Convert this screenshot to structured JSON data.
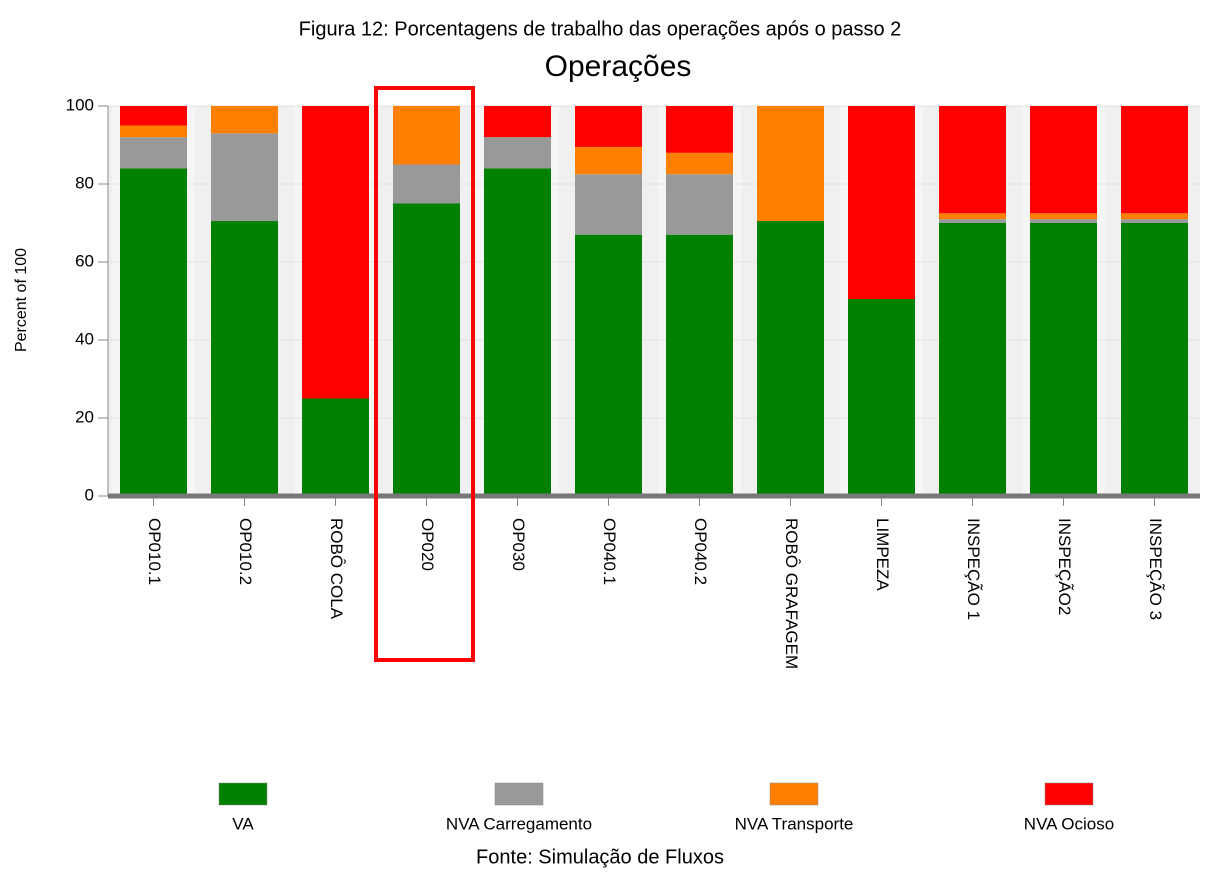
{
  "chart_data": {
    "type": "stacked_bar",
    "caption": "Figura 12: Porcentagens de trabalho das operações após o passo 2",
    "title": "Operações",
    "y_label": "Percent of 100",
    "source": "Fonte: Simulação de Fluxos",
    "categories": [
      "OP010.1",
      "OP010.2",
      "ROBÔ COLA",
      "OP020",
      "OP030",
      "OP040.1",
      "OP040.2",
      "ROBÔ GRAFAGEM",
      "LIMPEZA",
      "INSPEÇÃO 1",
      "INSPEÇÃO2",
      "INSPEÇÃO 3"
    ],
    "series": [
      {
        "name": "VA",
        "color": "#008000",
        "values": [
          84,
          70.5,
          25,
          75,
          84,
          67,
          67,
          70.5,
          50.5,
          70,
          70,
          70
        ]
      },
      {
        "name": "NVA Carregamento",
        "color": "#999999",
        "values": [
          8,
          22.5,
          0,
          10,
          8,
          15.5,
          15.5,
          0,
          0,
          1,
          1,
          1
        ]
      },
      {
        "name": "NVA Transporte",
        "color": "#ff8000",
        "values": [
          3,
          7,
          0,
          15,
          0,
          7,
          5.5,
          29.5,
          0,
          1.5,
          1.5,
          1.5
        ]
      },
      {
        "name": "NVA Ocioso",
        "color": "#ff0000",
        "values": [
          5,
          0,
          75,
          0,
          8,
          10.5,
          12,
          0,
          49.5,
          27.5,
          27.5,
          27.5
        ]
      }
    ],
    "ylim": [
      0,
      100
    ],
    "yticks": [
      0,
      20,
      40,
      60,
      80,
      100
    ],
    "grid": true
  }
}
